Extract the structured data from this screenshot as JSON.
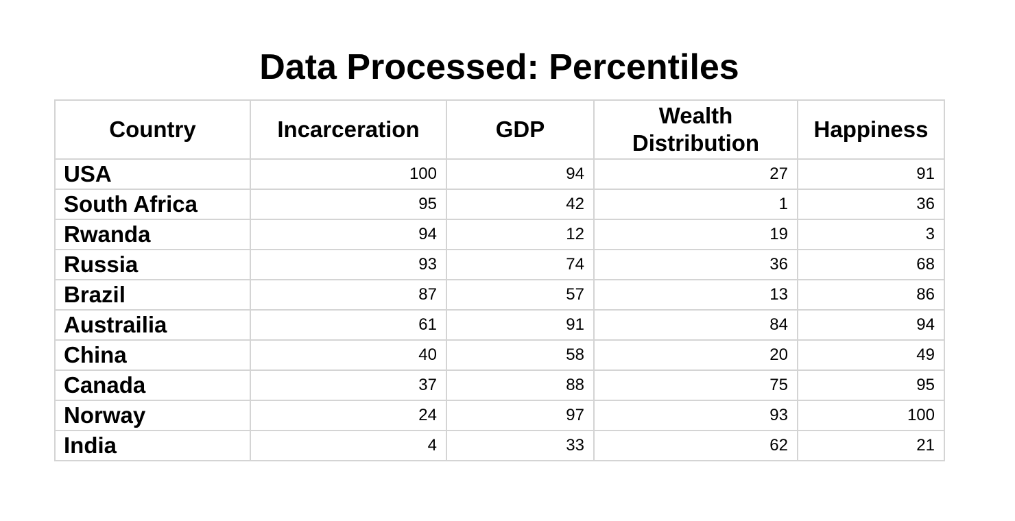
{
  "chart_data": {
    "type": "table",
    "title": "Data Processed: Percentiles",
    "columns": [
      "Country",
      "Incarceration",
      "GDP",
      "Wealth Distribution",
      "Happiness"
    ],
    "rows": [
      {
        "country": "USA",
        "values": [
          "100",
          "94",
          "27",
          "91"
        ]
      },
      {
        "country": "South Africa",
        "values": [
          "95",
          "42",
          "1",
          "36"
        ]
      },
      {
        "country": "Rwanda",
        "values": [
          "94",
          "12",
          "19",
          "3"
        ]
      },
      {
        "country": "Russia",
        "values": [
          "93",
          "74",
          "36",
          "68"
        ]
      },
      {
        "country": "Brazil",
        "values": [
          "87",
          "57",
          "13",
          "86"
        ]
      },
      {
        "country": "Austrailia",
        "values": [
          "61",
          "91",
          "84",
          "94"
        ]
      },
      {
        "country": "China",
        "values": [
          "40",
          "58",
          "20",
          "49"
        ]
      },
      {
        "country": "Canada",
        "values": [
          "37",
          "88",
          "75",
          "95"
        ]
      },
      {
        "country": "Norway",
        "values": [
          "24",
          "97",
          "93",
          "100"
        ]
      },
      {
        "country": "India",
        "values": [
          "4",
          "33",
          "62",
          "21"
        ]
      }
    ]
  }
}
